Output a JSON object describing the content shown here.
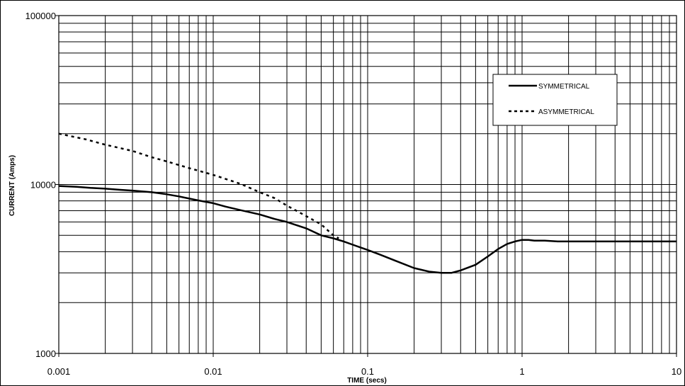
{
  "chart_data": {
    "type": "line",
    "title": "",
    "xlabel": "TIME (secs)",
    "ylabel": "CURRENT (Amps)",
    "xscale": "log",
    "yscale": "log",
    "xlim": [
      0.001,
      10
    ],
    "ylim": [
      1000,
      100000
    ],
    "x_ticks": [
      "0.001",
      "0.01",
      "0.1",
      "1",
      "10"
    ],
    "y_ticks": [
      "1000",
      "10000",
      "100000"
    ],
    "grid": true,
    "legend_position": "top-right",
    "series": [
      {
        "name": "SYMMETRICAL",
        "style": "solid",
        "color": "#000000",
        "x": [
          0.001,
          0.0013,
          0.0016,
          0.002,
          0.0025,
          0.003,
          0.004,
          0.005,
          0.006,
          0.007,
          0.008,
          0.01,
          0.012,
          0.015,
          0.02,
          0.025,
          0.03,
          0.04,
          0.05,
          0.06,
          0.07,
          0.08,
          0.1,
          0.12,
          0.15,
          0.2,
          0.25,
          0.3,
          0.35,
          0.4,
          0.5,
          0.6,
          0.7,
          0.8,
          0.9,
          1.0,
          1.1,
          1.2,
          1.4,
          1.7,
          2,
          3,
          5,
          10
        ],
        "y": [
          9800,
          9700,
          9550,
          9450,
          9300,
          9200,
          9000,
          8750,
          8500,
          8250,
          8050,
          7750,
          7400,
          7050,
          6650,
          6250,
          6000,
          5500,
          5000,
          4800,
          4600,
          4400,
          4100,
          3850,
          3550,
          3200,
          3050,
          3000,
          3000,
          3100,
          3350,
          3750,
          4150,
          4450,
          4600,
          4700,
          4700,
          4650,
          4650,
          4600,
          4600,
          4600,
          4600,
          4600
        ]
      },
      {
        "name": "ASYMMETRICAL",
        "style": "dashed",
        "color": "#000000",
        "x": [
          0.001,
          0.0015,
          0.002,
          0.003,
          0.004,
          0.005,
          0.007,
          0.01,
          0.015,
          0.02,
          0.025,
          0.03,
          0.04,
          0.05,
          0.06,
          0.065
        ],
        "y": [
          20000,
          18500,
          17200,
          15800,
          14500,
          13700,
          12500,
          11400,
          10100,
          9000,
          8300,
          7500,
          6500,
          5800,
          5000,
          4800
        ]
      }
    ]
  }
}
